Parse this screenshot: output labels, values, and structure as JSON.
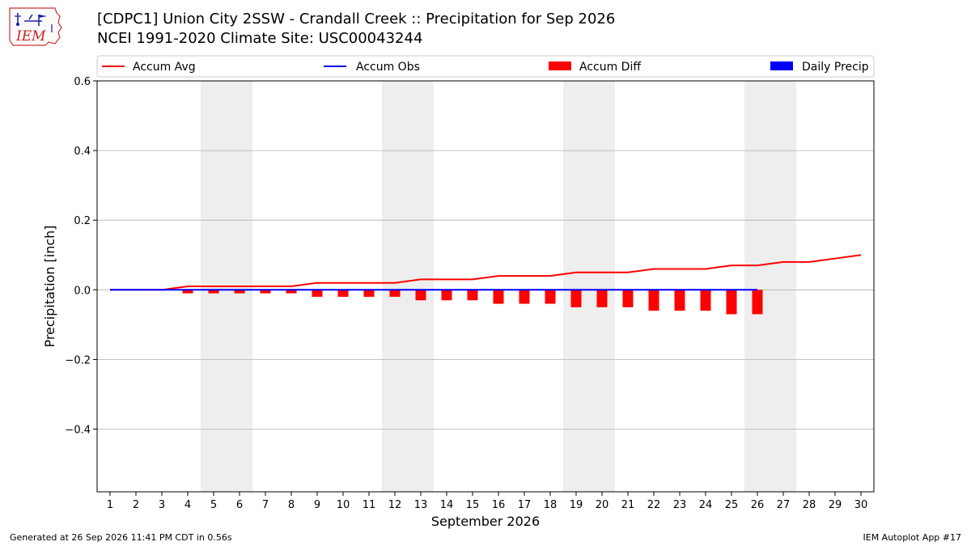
{
  "header": {
    "title_line1": "[CDPC1] Union City 2SSW - Crandall Creek :: Precipitation for Sep 2026",
    "title_line2": "NCEI 1991-2020 Climate Site: USC00043244",
    "logo_text": "IEM"
  },
  "footer": {
    "generated": "Generated at 26 Sep 2026 11:41 PM CDT in 0.56s",
    "app": "IEM Autoplot App #17"
  },
  "colors": {
    "accum_avg": "#ff0000",
    "accum_obs": "#0000ff",
    "accum_diff": "#ff0000",
    "daily_precip": "#0000ff",
    "weekend_shade": "#eeeeee",
    "grid": "#b0b0b0"
  },
  "chart_data": {
    "type": "bar",
    "xlabel": "September 2026",
    "ylabel": "Precipitation [inch]",
    "ylim": [
      -0.58,
      0.6
    ],
    "yticks": [
      -0.4,
      -0.2,
      0.0,
      0.2,
      0.4,
      0.6
    ],
    "ytick_labels": [
      "−0.4",
      "−0.2",
      "0.0",
      "0.2",
      "0.4",
      "0.6"
    ],
    "grid": "horizontal",
    "legend_position": "top",
    "days": [
      1,
      2,
      3,
      4,
      5,
      6,
      7,
      8,
      9,
      10,
      11,
      12,
      13,
      14,
      15,
      16,
      17,
      18,
      19,
      20,
      21,
      22,
      23,
      24,
      25,
      26,
      27,
      28,
      29,
      30
    ],
    "shaded_days": [
      [
        5,
        6
      ],
      [
        12,
        13
      ],
      [
        19,
        20
      ],
      [
        26,
        27
      ]
    ],
    "series": [
      {
        "name": "Accum Avg",
        "kind": "line",
        "values": [
          0.0,
          0.0,
          0.0,
          0.01,
          0.01,
          0.01,
          0.01,
          0.01,
          0.02,
          0.02,
          0.02,
          0.02,
          0.03,
          0.03,
          0.03,
          0.04,
          0.04,
          0.04,
          0.05,
          0.05,
          0.05,
          0.06,
          0.06,
          0.06,
          0.07,
          0.07,
          0.08,
          0.08,
          0.09,
          0.1
        ]
      },
      {
        "name": "Accum Obs",
        "kind": "line",
        "values": [
          0,
          0,
          0,
          0,
          0,
          0,
          0,
          0,
          0,
          0,
          0,
          0,
          0,
          0,
          0,
          0,
          0,
          0,
          0,
          0,
          0,
          0,
          0,
          0,
          0,
          0
        ]
      },
      {
        "name": "Accum Diff",
        "kind": "bar",
        "values": [
          0.0,
          0.0,
          0.0,
          -0.01,
          -0.01,
          -0.01,
          -0.01,
          -0.01,
          -0.02,
          -0.02,
          -0.02,
          -0.02,
          -0.03,
          -0.03,
          -0.03,
          -0.04,
          -0.04,
          -0.04,
          -0.05,
          -0.05,
          -0.05,
          -0.06,
          -0.06,
          -0.06,
          -0.07,
          -0.07
        ]
      },
      {
        "name": "Daily Precip",
        "kind": "bar",
        "values": [
          0,
          0,
          0,
          0,
          0,
          0,
          0,
          0,
          0,
          0,
          0,
          0,
          0,
          0,
          0,
          0,
          0,
          0,
          0,
          0,
          0,
          0,
          0,
          0,
          0,
          0
        ]
      }
    ]
  }
}
